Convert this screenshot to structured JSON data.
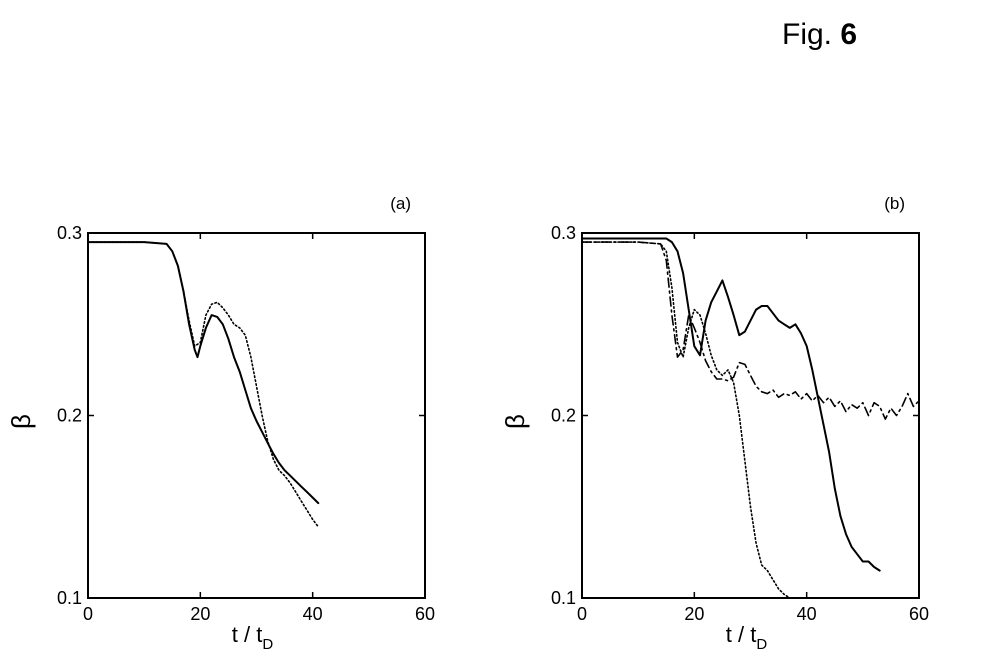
{
  "figure": {
    "prefix": "Fig.",
    "number": "6"
  },
  "chart_data": [
    {
      "type": "line",
      "panel": "(a)",
      "xlabel": "t / t",
      "xlabel_sub": "D",
      "ylabel": "β",
      "xlim": [
        0,
        60
      ],
      "ylim": [
        0.1,
        0.3
      ],
      "xticks": [
        0,
        20,
        40,
        60
      ],
      "yticks": [
        0.1,
        0.2,
        0.3
      ],
      "grid": false,
      "series": [
        {
          "style": "solid",
          "x": [
            0,
            5,
            10,
            14,
            15,
            16,
            17,
            18,
            19,
            19.5,
            20,
            21,
            22,
            23,
            24,
            25,
            26,
            27,
            28,
            29,
            30,
            31,
            32,
            33,
            34,
            35,
            36,
            37,
            38,
            39,
            40,
            41
          ],
          "y": [
            0.295,
            0.295,
            0.295,
            0.294,
            0.29,
            0.282,
            0.268,
            0.25,
            0.236,
            0.232,
            0.238,
            0.248,
            0.255,
            0.254,
            0.25,
            0.242,
            0.232,
            0.224,
            0.214,
            0.204,
            0.197,
            0.191,
            0.185,
            0.179,
            0.174,
            0.17,
            0.167,
            0.164,
            0.161,
            0.158,
            0.155,
            0.152
          ]
        },
        {
          "style": "dotted",
          "x": [
            0,
            5,
            10,
            14,
            15,
            16,
            17,
            18,
            19,
            20,
            21,
            22,
            23,
            24,
            25,
            26,
            27,
            28,
            29,
            30,
            31,
            32,
            33,
            34,
            35,
            36,
            37,
            38,
            39,
            40,
            41
          ],
          "y": [
            0.295,
            0.295,
            0.295,
            0.294,
            0.29,
            0.282,
            0.268,
            0.252,
            0.238,
            0.24,
            0.255,
            0.261,
            0.262,
            0.259,
            0.255,
            0.25,
            0.248,
            0.244,
            0.232,
            0.216,
            0.2,
            0.186,
            0.176,
            0.17,
            0.167,
            0.163,
            0.158,
            0.153,
            0.148,
            0.143,
            0.139
          ]
        }
      ]
    },
    {
      "type": "line",
      "panel": "(b)",
      "xlabel": "t / t",
      "xlabel_sub": "D",
      "ylabel": "β",
      "xlim": [
        0,
        60
      ],
      "ylim": [
        0.1,
        0.3
      ],
      "xticks": [
        0,
        20,
        40,
        60
      ],
      "yticks": [
        0.1,
        0.2,
        0.3
      ],
      "grid": false,
      "series": [
        {
          "style": "solid",
          "x": [
            0,
            10,
            15,
            16,
            17,
            18,
            19,
            20,
            21,
            22,
            23,
            24,
            25,
            26,
            27,
            28,
            29,
            30,
            31,
            32,
            33,
            34,
            35,
            36,
            37,
            38,
            39,
            40,
            41,
            42,
            43,
            44,
            45,
            46,
            47,
            48,
            49,
            50,
            51,
            52,
            53
          ],
          "y": [
            0.297,
            0.297,
            0.297,
            0.295,
            0.29,
            0.278,
            0.258,
            0.238,
            0.233,
            0.252,
            0.262,
            0.268,
            0.274,
            0.265,
            0.255,
            0.244,
            0.246,
            0.252,
            0.258,
            0.26,
            0.26,
            0.256,
            0.252,
            0.25,
            0.248,
            0.25,
            0.245,
            0.238,
            0.225,
            0.21,
            0.195,
            0.18,
            0.16,
            0.145,
            0.135,
            0.128,
            0.124,
            0.12,
            0.12,
            0.117,
            0.115
          ]
        },
        {
          "style": "dashed",
          "x": [
            0,
            10,
            14,
            15,
            16,
            17,
            18,
            19,
            20,
            21,
            22,
            23,
            24,
            25,
            26,
            27,
            28,
            29,
            30,
            31,
            32,
            33,
            34,
            35,
            36,
            37,
            38,
            39,
            40,
            41,
            42,
            43,
            44,
            45,
            46,
            47,
            48,
            49,
            50,
            51,
            52,
            53,
            54,
            55,
            56,
            57,
            58,
            59,
            60
          ],
          "y": [
            0.295,
            0.295,
            0.294,
            0.285,
            0.255,
            0.232,
            0.236,
            0.255,
            0.248,
            0.24,
            0.23,
            0.224,
            0.22,
            0.22,
            0.219,
            0.221,
            0.229,
            0.228,
            0.222,
            0.216,
            0.213,
            0.212,
            0.214,
            0.21,
            0.212,
            0.211,
            0.213,
            0.209,
            0.212,
            0.208,
            0.211,
            0.207,
            0.21,
            0.205,
            0.208,
            0.202,
            0.206,
            0.204,
            0.207,
            0.2,
            0.207,
            0.205,
            0.198,
            0.204,
            0.2,
            0.205,
            0.212,
            0.205,
            0.208
          ]
        },
        {
          "style": "dotted",
          "x": [
            0,
            10,
            14,
            15,
            16,
            17,
            18,
            19,
            20,
            21,
            22,
            23,
            24,
            25,
            26,
            27,
            28,
            29,
            30,
            31,
            32,
            33,
            34,
            35,
            36,
            37
          ],
          "y": [
            0.295,
            0.295,
            0.294,
            0.29,
            0.27,
            0.24,
            0.232,
            0.248,
            0.258,
            0.255,
            0.245,
            0.233,
            0.225,
            0.222,
            0.225,
            0.218,
            0.2,
            0.175,
            0.15,
            0.13,
            0.118,
            0.115,
            0.11,
            0.105,
            0.102,
            0.1
          ]
        }
      ]
    }
  ]
}
